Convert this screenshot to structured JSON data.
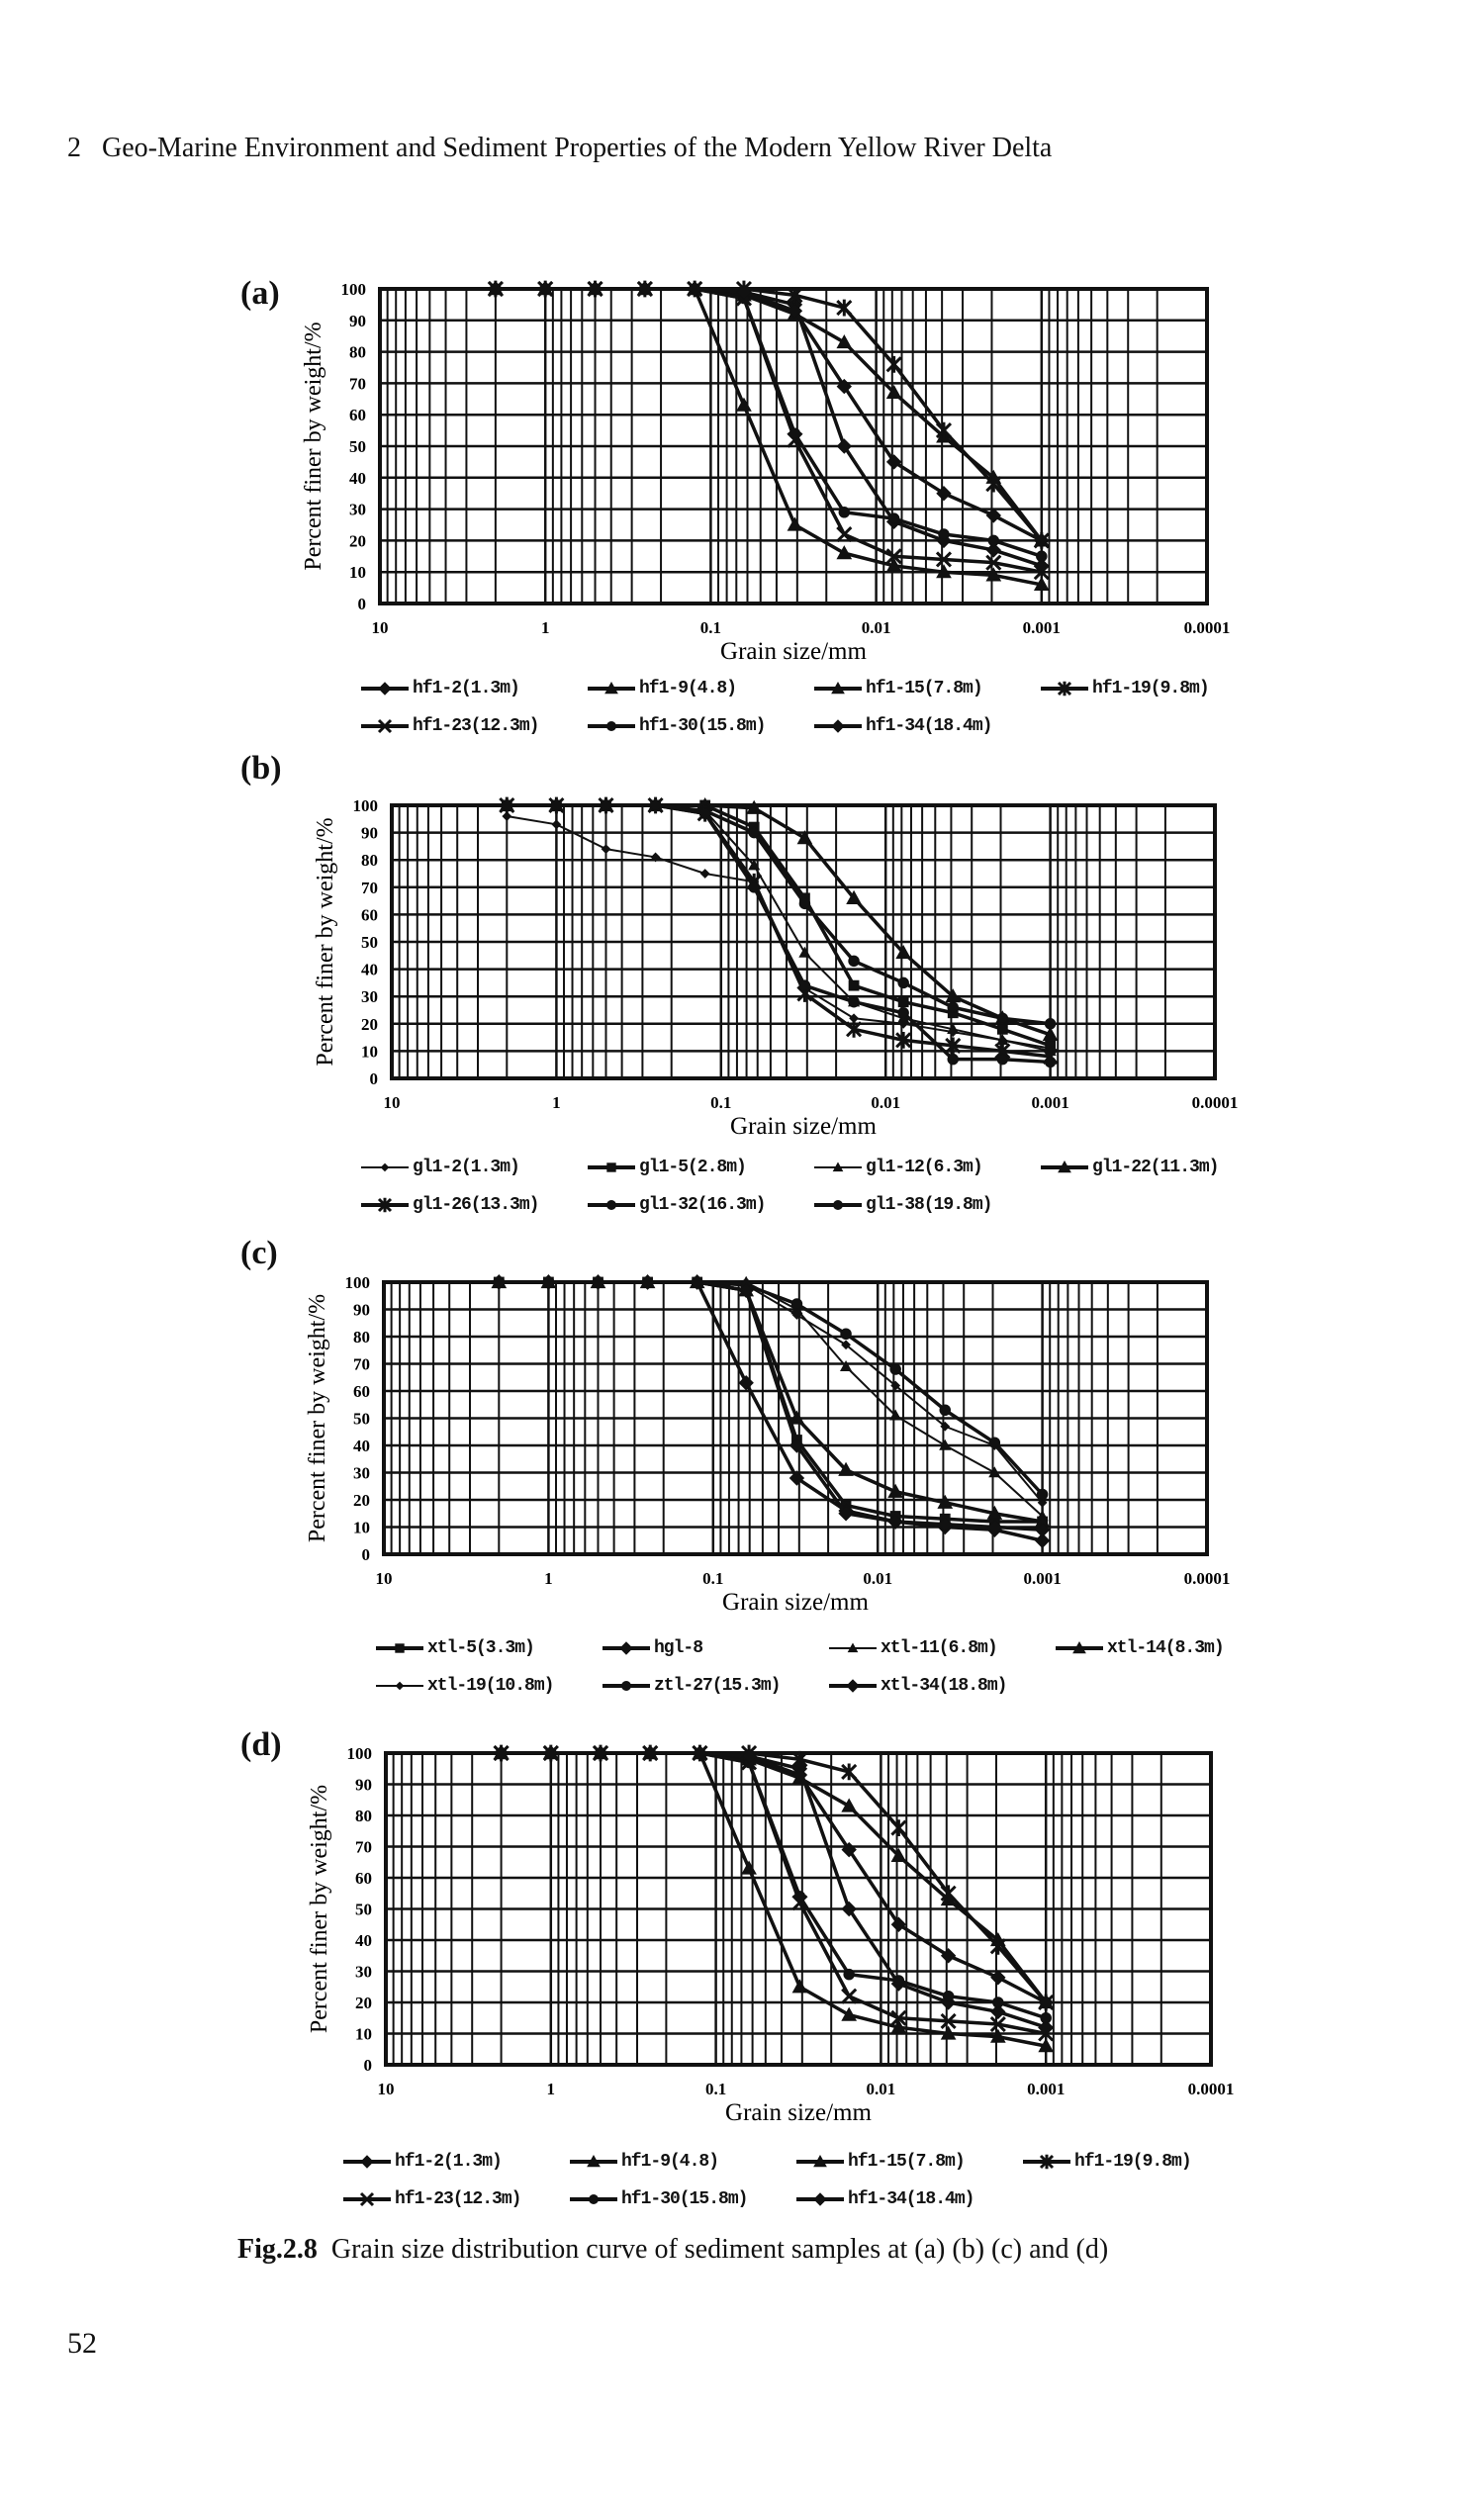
{
  "header": {
    "chapter": "2",
    "title": "Geo-Marine Environment and Sediment Properties of the Modern Yellow River Delta"
  },
  "caption": {
    "label": "Fig.2.8",
    "text": "Grain size distribution curve of sediment samples at (a) (b) (c) and (d)"
  },
  "page_number": "52",
  "chart_data": [
    {
      "panel": "(a)",
      "type": "line",
      "xlabel": "Grain size/mm",
      "ylabel": "Percent finer by weight/%",
      "xscale": "log-reversed",
      "xlim": [
        10,
        0.0001
      ],
      "ylim": [
        0,
        100
      ],
      "xticks": [
        "10",
        "1",
        "0.1",
        "0.01",
        "0.001",
        "0.0001"
      ],
      "yticks": [
        "0",
        "10",
        "20",
        "30",
        "40",
        "50",
        "60",
        "70",
        "80",
        "90",
        "100"
      ],
      "grid": true,
      "legend_position": "bottom",
      "x": [
        2,
        1,
        0.5,
        0.25,
        0.125,
        0.063,
        0.031,
        0.0156,
        0.0078,
        0.0039,
        0.00195,
        0.001
      ],
      "series": [
        {
          "name": "hf1-2(1.3m)",
          "marker": "diamond",
          "values": [
            100,
            100,
            100,
            100,
            100,
            99,
            95,
            50,
            26,
            20,
            17,
            12
          ]
        },
        {
          "name": "hf1-9(4.8)",
          "marker": "triangle",
          "values": [
            100,
            100,
            100,
            100,
            100,
            63,
            25,
            16,
            12,
            10,
            9,
            6
          ]
        },
        {
          "name": "hf1-15(7.8m)",
          "marker": "triangle",
          "values": [
            100,
            100,
            100,
            100,
            100,
            98,
            92,
            83,
            67,
            53,
            40,
            20
          ]
        },
        {
          "name": "hf1-19(9.8m)",
          "marker": "asterisk",
          "values": [
            100,
            100,
            100,
            100,
            100,
            100,
            98,
            94,
            76,
            55,
            38,
            20
          ]
        },
        {
          "name": "hf1-23(12.3m)",
          "marker": "x",
          "values": [
            100,
            100,
            100,
            100,
            100,
            97,
            52,
            22,
            15,
            14,
            13,
            10
          ]
        },
        {
          "name": "hf1-30(15.8m)",
          "marker": "circle",
          "values": [
            100,
            100,
            100,
            100,
            100,
            97,
            54,
            29,
            27,
            22,
            20,
            15
          ]
        },
        {
          "name": "hf1-34(18.4m)",
          "marker": "diamond",
          "values": [
            100,
            100,
            100,
            100,
            100,
            99,
            93,
            69,
            45,
            35,
            28,
            20
          ]
        }
      ]
    },
    {
      "panel": "(b)",
      "type": "line",
      "xlabel": "Grain size/mm",
      "ylabel": "Percent finer by weight/%",
      "xscale": "log-reversed",
      "xlim": [
        10,
        0.0001
      ],
      "ylim": [
        0,
        100
      ],
      "xticks": [
        "10",
        "1",
        "0.1",
        "0.01",
        "0.001",
        "0.0001"
      ],
      "yticks": [
        "0",
        "10",
        "20",
        "30",
        "40",
        "50",
        "60",
        "70",
        "80",
        "90",
        "100"
      ],
      "grid": true,
      "legend_position": "bottom",
      "x": [
        2,
        1,
        0.5,
        0.25,
        0.125,
        0.063,
        0.031,
        0.0156,
        0.0078,
        0.0039,
        0.00195,
        0.001
      ],
      "series": [
        {
          "name": "gl1-2(1.3m)",
          "marker": "small-diamond",
          "values": [
            96,
            93,
            84,
            81,
            75,
            72,
            33,
            22,
            20,
            17,
            14,
            11
          ]
        },
        {
          "name": "gl1-5(2.8m)",
          "marker": "square",
          "values": [
            100,
            100,
            100,
            100,
            100,
            92,
            66,
            34,
            28,
            24,
            18,
            12
          ]
        },
        {
          "name": "gl1-12(6.3m)",
          "marker": "small-triangle",
          "values": [
            100,
            100,
            100,
            100,
            98,
            78,
            46,
            28,
            22,
            18,
            14,
            10
          ]
        },
        {
          "name": "gl1-22(11.3m)",
          "marker": "triangle",
          "values": [
            100,
            100,
            100,
            100,
            100,
            99,
            88,
            66,
            46,
            30,
            22,
            16
          ]
        },
        {
          "name": "gl1-26(13.3m)",
          "marker": "asterisk",
          "values": [
            100,
            100,
            100,
            100,
            97,
            72,
            31,
            18,
            14,
            12,
            10,
            8
          ]
        },
        {
          "name": "gl1-32(16.3m)",
          "marker": "circle",
          "values": [
            100,
            100,
            100,
            100,
            98,
            90,
            64,
            43,
            35,
            26,
            22,
            20
          ]
        },
        {
          "name": "gl1-38(19.8m)",
          "marker": "circle",
          "values": [
            100,
            100,
            100,
            100,
            97,
            70,
            34,
            28,
            24,
            7,
            7,
            6
          ]
        }
      ]
    },
    {
      "panel": "(c)",
      "type": "line",
      "xlabel": "Grain size/mm",
      "ylabel": "Percent finer by weight/%",
      "xscale": "log-reversed",
      "xlim": [
        10,
        0.0001
      ],
      "ylim": [
        0,
        100
      ],
      "xticks": [
        "10",
        "1",
        "0.1",
        "0.01",
        "0.001",
        "0.0001"
      ],
      "yticks": [
        "0",
        "10",
        "20",
        "30",
        "40",
        "50",
        "60",
        "70",
        "80",
        "90",
        "100"
      ],
      "grid": true,
      "legend_position": "bottom",
      "x": [
        2,
        1,
        0.5,
        0.25,
        0.125,
        0.063,
        0.031,
        0.0156,
        0.0078,
        0.0039,
        0.00195,
        0.001
      ],
      "series": [
        {
          "name": "xtl-5(3.3m)",
          "marker": "square",
          "values": [
            100,
            100,
            100,
            100,
            100,
            97,
            42,
            18,
            14,
            13,
            12,
            12
          ]
        },
        {
          "name": "hgl-8",
          "marker": "diamond",
          "values": [
            100,
            100,
            100,
            100,
            100,
            63,
            28,
            16,
            12,
            10,
            9,
            5
          ]
        },
        {
          "name": "xtl-11(6.8m)",
          "marker": "small-triangle",
          "values": [
            100,
            100,
            100,
            100,
            100,
            100,
            90,
            69,
            51,
            40,
            30,
            14
          ]
        },
        {
          "name": "xtl-14(8.3m)",
          "marker": "triangle",
          "values": [
            100,
            100,
            100,
            100,
            100,
            97,
            50,
            31,
            23,
            19,
            15,
            12
          ]
        },
        {
          "name": "xtl-19(10.8m)",
          "marker": "small-diamond",
          "values": [
            100,
            100,
            100,
            100,
            100,
            99,
            88,
            77,
            62,
            47,
            40,
            19
          ]
        },
        {
          "name": "ztl-27(15.3m)",
          "marker": "circle",
          "values": [
            100,
            100,
            100,
            100,
            100,
            99,
            92,
            81,
            68,
            53,
            41,
            22
          ]
        },
        {
          "name": "xtl-34(18.8m)",
          "marker": "diamond",
          "values": [
            100,
            100,
            100,
            100,
            100,
            97,
            40,
            15,
            12,
            11,
            10,
            9
          ]
        }
      ]
    },
    {
      "panel": "(d)",
      "type": "line",
      "xlabel": "Grain size/mm",
      "ylabel": "Percent finer by weight/%",
      "xscale": "log-reversed",
      "xlim": [
        10,
        0.0001
      ],
      "ylim": [
        0,
        100
      ],
      "xticks": [
        "10",
        "1",
        "0.1",
        "0.01",
        "0.001",
        "0.0001"
      ],
      "yticks": [
        "0",
        "10",
        "20",
        "30",
        "40",
        "50",
        "60",
        "70",
        "80",
        "90",
        "100"
      ],
      "grid": true,
      "legend_position": "bottom",
      "x": [
        2,
        1,
        0.5,
        0.25,
        0.125,
        0.063,
        0.031,
        0.0156,
        0.0078,
        0.0039,
        0.00195,
        0.001
      ],
      "series": [
        {
          "name": "hf1-2(1.3m)",
          "marker": "diamond",
          "values": [
            100,
            100,
            100,
            100,
            100,
            99,
            95,
            50,
            26,
            20,
            17,
            12
          ]
        },
        {
          "name": "hf1-9(4.8)",
          "marker": "triangle",
          "values": [
            100,
            100,
            100,
            100,
            100,
            63,
            25,
            16,
            12,
            10,
            9,
            6
          ]
        },
        {
          "name": "hf1-15(7.8m)",
          "marker": "triangle",
          "values": [
            100,
            100,
            100,
            100,
            100,
            98,
            92,
            83,
            67,
            53,
            40,
            20
          ]
        },
        {
          "name": "hf1-19(9.8m)",
          "marker": "asterisk",
          "values": [
            100,
            100,
            100,
            100,
            100,
            100,
            98,
            94,
            76,
            55,
            38,
            20
          ]
        },
        {
          "name": "hf1-23(12.3m)",
          "marker": "x",
          "values": [
            100,
            100,
            100,
            100,
            100,
            97,
            52,
            22,
            15,
            14,
            13,
            10
          ]
        },
        {
          "name": "hf1-30(15.8m)",
          "marker": "circle",
          "values": [
            100,
            100,
            100,
            100,
            100,
            97,
            54,
            29,
            27,
            22,
            20,
            15
          ]
        },
        {
          "name": "hf1-34(18.4m)",
          "marker": "diamond",
          "values": [
            100,
            100,
            100,
            100,
            100,
            99,
            93,
            69,
            45,
            35,
            28,
            20
          ]
        }
      ]
    }
  ]
}
